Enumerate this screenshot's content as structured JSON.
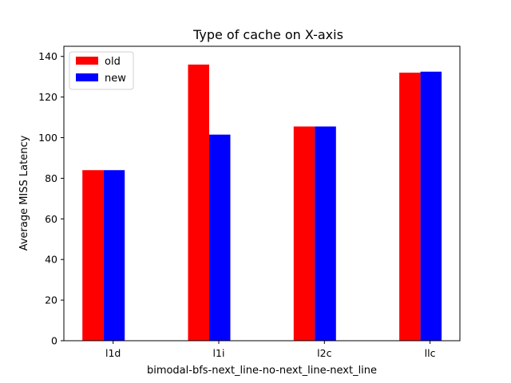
{
  "chart_data": {
    "type": "bar",
    "title": "Type of cache on X-axis",
    "xlabel": "bimodal-bfs-next_line-no-next_line-next_line",
    "ylabel": "Average MISS Latency",
    "categories": [
      "l1d",
      "l1i",
      "l2c",
      "llc"
    ],
    "series": [
      {
        "name": "old",
        "color": "#ff0000",
        "values": [
          84,
          136,
          105.5,
          132
        ]
      },
      {
        "name": "new",
        "color": "#0000ff",
        "values": [
          84,
          101.5,
          105.5,
          132.5
        ]
      }
    ],
    "ylim": [
      0,
      145
    ],
    "yticks": [
      0,
      20,
      40,
      60,
      80,
      100,
      120,
      140
    ],
    "grid": false,
    "legend_position": "top-left"
  }
}
